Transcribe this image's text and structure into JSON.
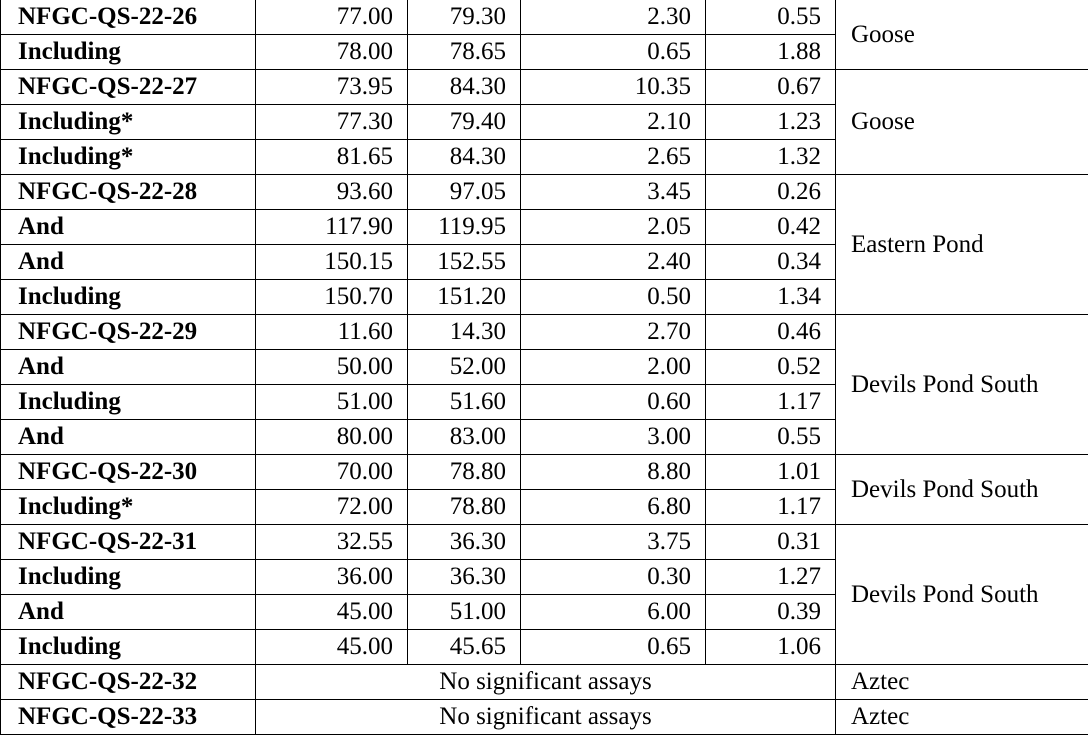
{
  "table": {
    "groups": [
      {
        "zone": "Goose",
        "rows": [
          [
            "NFGC-QS-22-26",
            "77.00",
            "79.30",
            "2.30",
            "0.55"
          ],
          [
            "Including",
            "78.00",
            "78.65",
            "0.65",
            "1.88"
          ]
        ]
      },
      {
        "zone": "Goose",
        "rows": [
          [
            "NFGC-QS-22-27",
            "73.95",
            "84.30",
            "10.35",
            "0.67"
          ],
          [
            "Including*",
            "77.30",
            "79.40",
            "2.10",
            "1.23"
          ],
          [
            "Including*",
            "81.65",
            "84.30",
            "2.65",
            "1.32"
          ]
        ]
      },
      {
        "zone": "Eastern Pond",
        "rows": [
          [
            "NFGC-QS-22-28",
            "93.60",
            "97.05",
            "3.45",
            "0.26"
          ],
          [
            "And",
            "117.90",
            "119.95",
            "2.05",
            "0.42"
          ],
          [
            "And",
            "150.15",
            "152.55",
            "2.40",
            "0.34"
          ],
          [
            "Including",
            "150.70",
            "151.20",
            "0.50",
            "1.34"
          ]
        ]
      },
      {
        "zone": "Devils Pond South",
        "rows": [
          [
            "NFGC-QS-22-29",
            "11.60",
            "14.30",
            "2.70",
            "0.46"
          ],
          [
            "And",
            "50.00",
            "52.00",
            "2.00",
            "0.52"
          ],
          [
            "Including",
            "51.00",
            "51.60",
            "0.60",
            "1.17"
          ],
          [
            "And",
            "80.00",
            "83.00",
            "3.00",
            "0.55"
          ]
        ]
      },
      {
        "zone": "Devils Pond South",
        "rows": [
          [
            "NFGC-QS-22-30",
            "70.00",
            "78.80",
            "8.80",
            "1.01"
          ],
          [
            "Including*",
            "72.00",
            "78.80",
            "6.80",
            "1.17"
          ]
        ]
      },
      {
        "zone": "Devils Pond South",
        "rows": [
          [
            "NFGC-QS-22-31",
            "32.55",
            "36.30",
            "3.75",
            "0.31"
          ],
          [
            "Including",
            "36.00",
            "36.30",
            "0.30",
            "1.27"
          ],
          [
            "And",
            "45.00",
            "51.00",
            "6.00",
            "0.39"
          ],
          [
            "Including",
            "45.00",
            "45.65",
            "0.65",
            "1.06"
          ]
        ]
      },
      {
        "zone": "Aztec",
        "rows": [
          [
            "NFGC-QS-22-32",
            "No significant assays"
          ]
        ]
      },
      {
        "zone": "Aztec",
        "rows": [
          [
            "NFGC-QS-22-33",
            "No significant assays"
          ]
        ]
      }
    ]
  }
}
